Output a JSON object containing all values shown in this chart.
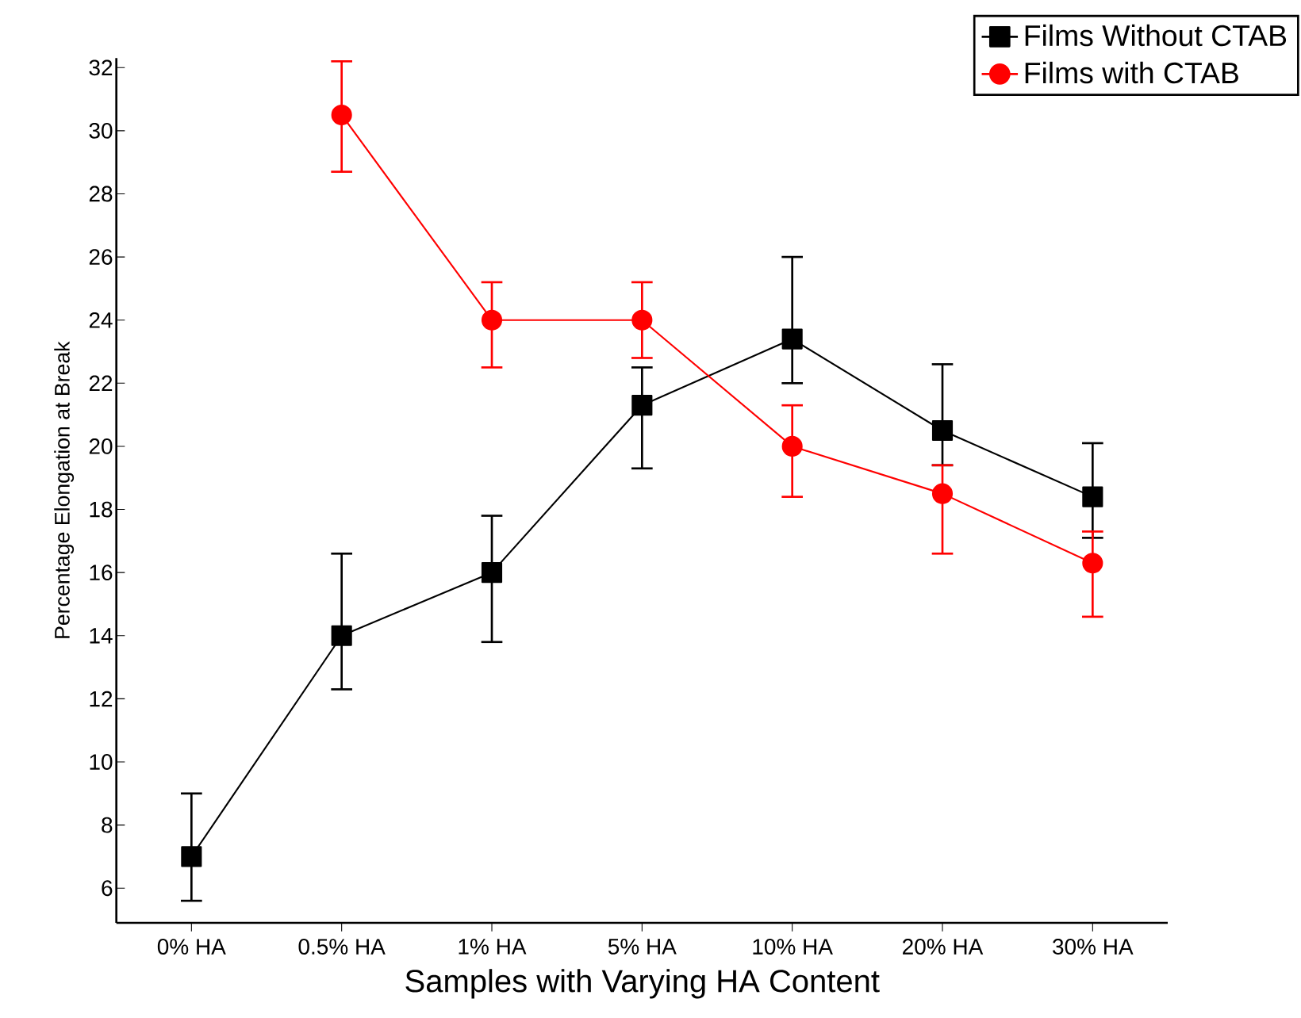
{
  "chart_data": {
    "type": "line",
    "xlabel": "Samples with Varying HA Content",
    "ylabel": "Percentage Elongation at Break",
    "categories": [
      "0% HA",
      "0.5% HA",
      "1% HA",
      "5% HA",
      "10% HA",
      "20% HA",
      "30% HA"
    ],
    "series": [
      {
        "name": "Films Without CTAB",
        "color": "#000000",
        "marker": "square",
        "values": [
          7.0,
          14.0,
          16.0,
          21.3,
          23.4,
          20.5,
          18.4
        ],
        "errors": [
          [
            5.6,
            9.0
          ],
          [
            12.3,
            16.6
          ],
          [
            13.8,
            17.8
          ],
          [
            19.3,
            22.5
          ],
          [
            22.0,
            26.0
          ],
          [
            19.4,
            22.6
          ],
          [
            17.1,
            20.1
          ]
        ]
      },
      {
        "name": "Films with CTAB",
        "color": "#ff0000",
        "marker": "circle",
        "values": [
          null,
          30.5,
          24.0,
          24.0,
          20.0,
          18.5,
          16.3
        ],
        "errors": [
          null,
          [
            28.7,
            32.2
          ],
          [
            22.5,
            25.2
          ],
          [
            22.8,
            25.2
          ],
          [
            18.4,
            21.3
          ],
          [
            16.6,
            19.4
          ],
          [
            14.6,
            17.3
          ]
        ]
      }
    ],
    "ylim": [
      4.9,
      32.3
    ],
    "yticks": [
      6,
      8,
      10,
      12,
      14,
      16,
      18,
      20,
      22,
      24,
      26,
      28,
      30,
      32
    ],
    "legend": "top right",
    "grid": false
  }
}
